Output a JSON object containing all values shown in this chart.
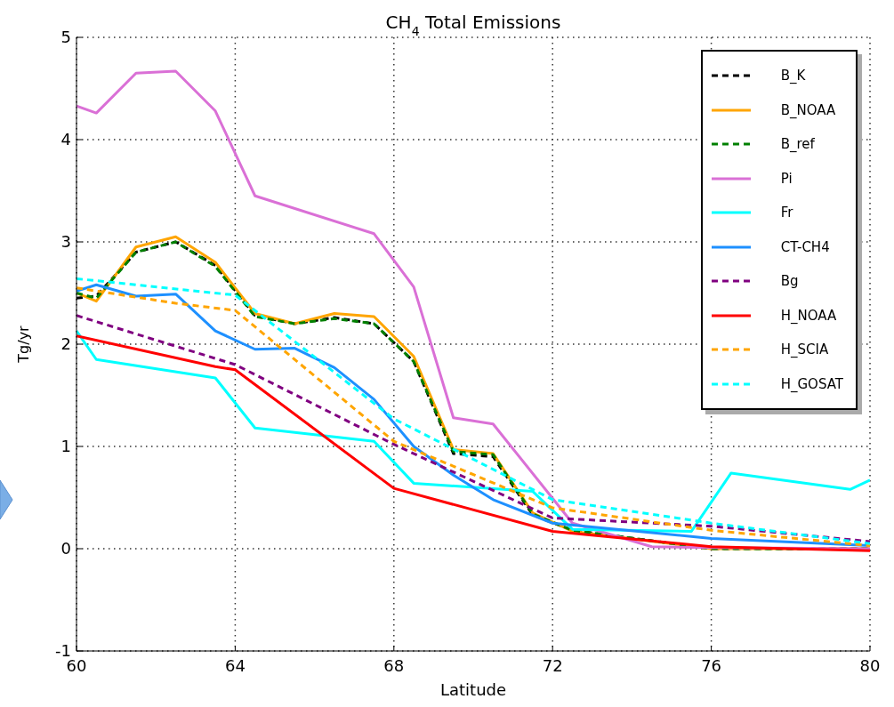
{
  "chart_data": {
    "type": "line",
    "title": "CH$_{4}$ Total Emissions",
    "xlabel": "Latitude",
    "ylabel": "Tg/yr",
    "xlim": [
      60,
      80
    ],
    "xticks": [
      60,
      64,
      68,
      72,
      76,
      80
    ],
    "ylim": [
      -1,
      5
    ],
    "yticks": [
      -1,
      0,
      1,
      2,
      3,
      4,
      5
    ],
    "grid": true,
    "legend": "top right",
    "marker": "none",
    "series": [
      {
        "name": "B_K",
        "color": "#000000",
        "line_style": "dashed",
        "x": [
          60,
          60.5,
          61.5,
          62.5,
          63.5,
          64.5,
          65.5,
          66.5,
          67.5,
          68.5,
          69.5,
          70.5,
          71.5,
          72.5,
          76,
          80
        ],
        "values": [
          2.45,
          2.47,
          2.9,
          3.0,
          2.77,
          2.28,
          2.2,
          2.26,
          2.2,
          1.83,
          0.93,
          0.9,
          0.33,
          0.18,
          0.0,
          0.0
        ]
      },
      {
        "name": "B_NOAA",
        "color": "#ffa500",
        "line_style": "solid",
        "x": [
          60,
          60.5,
          61.5,
          62.5,
          63.5,
          64.5,
          65.5,
          66.5,
          67.5,
          68.5,
          69.5,
          70.5,
          71.5,
          72.5,
          76,
          80
        ],
        "values": [
          2.5,
          2.42,
          2.95,
          3.05,
          2.8,
          2.3,
          2.2,
          2.3,
          2.27,
          1.88,
          0.97,
          0.93,
          0.35,
          0.17,
          0.0,
          0.0
        ]
      },
      {
        "name": "B_ref",
        "color": "#008000",
        "line_style": "dashed",
        "x": [
          60,
          60.5,
          61.5,
          62.5,
          63.5,
          64.5,
          65.5,
          66.5,
          67.5,
          68.5,
          69.5,
          70.5,
          71.5,
          72.5,
          76,
          80
        ],
        "values": [
          2.5,
          2.45,
          2.9,
          3.0,
          2.76,
          2.27,
          2.2,
          2.25,
          2.2,
          1.83,
          0.95,
          0.92,
          0.34,
          0.18,
          0.0,
          0.0
        ]
      },
      {
        "name": "Pi",
        "color": "#da70d6",
        "line_style": "solid",
        "x": [
          60,
          60.5,
          61.5,
          62.5,
          63.5,
          64.5,
          67.5,
          68.5,
          69.5,
          70.5,
          72.5,
          74.5,
          76,
          80
        ],
        "values": [
          4.33,
          4.26,
          4.65,
          4.67,
          4.28,
          3.45,
          3.08,
          2.56,
          1.28,
          1.22,
          0.25,
          0.02,
          0.01,
          0.0
        ]
      },
      {
        "name": "Fr",
        "color": "#00ffff",
        "line_style": "solid",
        "x": [
          60,
          60.5,
          63.5,
          64.5,
          67.5,
          68.5,
          71.5,
          72.5,
          75.5,
          76.5,
          79.5,
          80
        ],
        "values": [
          2.13,
          1.85,
          1.67,
          1.18,
          1.05,
          0.64,
          0.56,
          0.19,
          0.17,
          0.74,
          0.58,
          0.67
        ]
      },
      {
        "name": "CT-CH4",
        "color": "#1e90ff",
        "line_style": "solid",
        "x": [
          60,
          60.5,
          61.5,
          62.5,
          63.5,
          64.5,
          65.5,
          66.5,
          67.5,
          68.5,
          69.5,
          70.5,
          72,
          76,
          80
        ],
        "values": [
          2.52,
          2.58,
          2.47,
          2.49,
          2.13,
          1.95,
          1.96,
          1.77,
          1.46,
          1.0,
          0.72,
          0.48,
          0.25,
          0.1,
          0.03
        ]
      },
      {
        "name": "Bg",
        "color": "#800080",
        "line_style": "dashed",
        "x": [
          60,
          64,
          68,
          72,
          76,
          80
        ],
        "values": [
          2.28,
          1.8,
          1.02,
          0.3,
          0.22,
          0.07
        ]
      },
      {
        "name": "H_NOAA",
        "color": "#ff0000",
        "line_style": "solid",
        "x": [
          60,
          63.5,
          64,
          68,
          72,
          76,
          80
        ],
        "values": [
          2.08,
          1.78,
          1.75,
          0.59,
          0.17,
          0.02,
          -0.02
        ]
      },
      {
        "name": "H_SCIA",
        "color": "#ffa500",
        "line_style": "dashed",
        "x": [
          60,
          62.5,
          64,
          68,
          72,
          76,
          80
        ],
        "values": [
          2.55,
          2.4,
          2.33,
          1.05,
          0.4,
          0.18,
          0.03
        ]
      },
      {
        "name": "H_GOSAT",
        "color": "#00ffff",
        "line_style": "dashed",
        "x": [
          60,
          64,
          68,
          72,
          76,
          80
        ],
        "values": [
          2.64,
          2.48,
          1.27,
          0.48,
          0.25,
          0.05
        ]
      }
    ]
  }
}
